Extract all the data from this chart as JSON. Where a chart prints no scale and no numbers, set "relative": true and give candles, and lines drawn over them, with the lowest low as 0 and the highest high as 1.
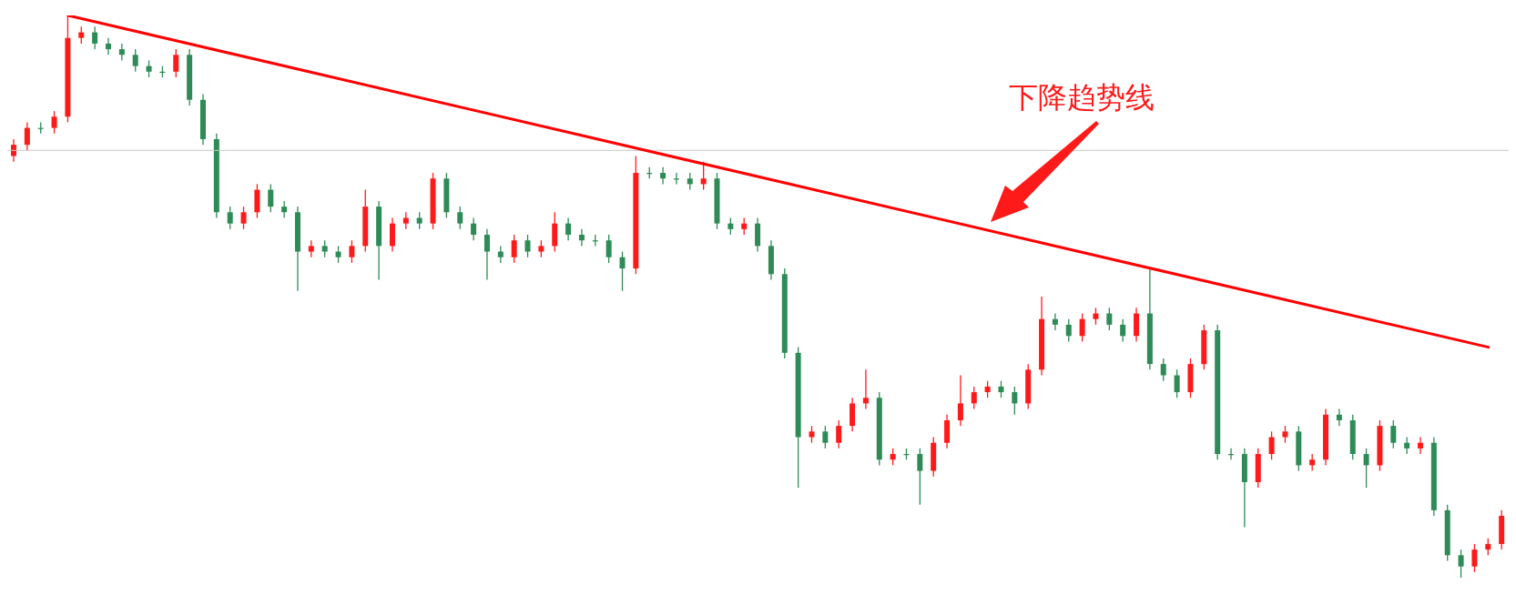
{
  "chart_data": {
    "type": "candlestick",
    "relative": true,
    "categories": [
      null,
      null,
      null,
      null,
      null,
      null,
      null,
      null,
      null,
      null,
      null,
      null,
      null,
      null,
      null,
      null,
      null,
      null,
      null,
      null,
      null,
      null,
      null,
      null,
      null,
      null,
      null,
      null,
      null,
      null,
      null,
      null,
      null,
      null,
      null,
      null,
      null,
      null,
      null,
      null,
      null,
      null,
      null,
      null,
      null,
      null,
      null,
      null,
      null,
      null,
      null,
      null,
      null,
      null,
      null,
      null,
      null,
      null,
      null,
      null,
      null,
      null,
      null,
      null,
      null,
      null,
      null,
      null,
      null,
      null,
      null,
      null,
      null,
      null,
      null,
      null,
      null,
      null,
      null,
      null,
      null,
      null,
      null,
      null,
      null,
      null,
      null,
      null,
      null,
      null,
      null,
      null,
      null,
      null,
      null,
      null,
      null,
      null,
      null,
      null,
      null,
      null,
      null,
      null,
      null,
      null,
      null,
      null,
      null,
      null,
      null
    ],
    "ohlc": [
      [
        0.75,
        0.78,
        0.74,
        0.77
      ],
      [
        0.77,
        0.81,
        0.76,
        0.8
      ],
      [
        0.8,
        0.81,
        0.79,
        0.8
      ],
      [
        0.8,
        0.83,
        0.79,
        0.82
      ],
      [
        0.82,
        1.0,
        0.81,
        0.96
      ],
      [
        0.96,
        0.98,
        0.95,
        0.97
      ],
      [
        0.97,
        0.98,
        0.94,
        0.95
      ],
      [
        0.95,
        0.96,
        0.93,
        0.94
      ],
      [
        0.94,
        0.95,
        0.92,
        0.93
      ],
      [
        0.93,
        0.94,
        0.9,
        0.91
      ],
      [
        0.91,
        0.92,
        0.89,
        0.9
      ],
      [
        0.9,
        0.91,
        0.89,
        0.9
      ],
      [
        0.9,
        0.94,
        0.89,
        0.93
      ],
      [
        0.93,
        0.94,
        0.84,
        0.85
      ],
      [
        0.85,
        0.86,
        0.77,
        0.78
      ],
      [
        0.78,
        0.79,
        0.64,
        0.65
      ],
      [
        0.65,
        0.66,
        0.62,
        0.63
      ],
      [
        0.63,
        0.66,
        0.62,
        0.65
      ],
      [
        0.65,
        0.7,
        0.64,
        0.69
      ],
      [
        0.69,
        0.7,
        0.65,
        0.66
      ],
      [
        0.66,
        0.67,
        0.64,
        0.65
      ],
      [
        0.65,
        0.66,
        0.51,
        0.58
      ],
      [
        0.58,
        0.6,
        0.57,
        0.59
      ],
      [
        0.59,
        0.6,
        0.57,
        0.58
      ],
      [
        0.58,
        0.59,
        0.56,
        0.57
      ],
      [
        0.57,
        0.6,
        0.56,
        0.59
      ],
      [
        0.59,
        0.69,
        0.58,
        0.66
      ],
      [
        0.66,
        0.67,
        0.53,
        0.59
      ],
      [
        0.59,
        0.64,
        0.58,
        0.63
      ],
      [
        0.63,
        0.65,
        0.62,
        0.64
      ],
      [
        0.64,
        0.65,
        0.62,
        0.63
      ],
      [
        0.63,
        0.72,
        0.62,
        0.71
      ],
      [
        0.71,
        0.72,
        0.64,
        0.65
      ],
      [
        0.65,
        0.66,
        0.62,
        0.63
      ],
      [
        0.63,
        0.64,
        0.6,
        0.61
      ],
      [
        0.61,
        0.62,
        0.53,
        0.58
      ],
      [
        0.58,
        0.59,
        0.56,
        0.57
      ],
      [
        0.57,
        0.61,
        0.56,
        0.6
      ],
      [
        0.6,
        0.61,
        0.57,
        0.58
      ],
      [
        0.58,
        0.6,
        0.57,
        0.59
      ],
      [
        0.59,
        0.65,
        0.58,
        0.63
      ],
      [
        0.63,
        0.64,
        0.6,
        0.61
      ],
      [
        0.61,
        0.62,
        0.59,
        0.6
      ],
      [
        0.6,
        0.61,
        0.59,
        0.6
      ],
      [
        0.6,
        0.61,
        0.56,
        0.57
      ],
      [
        0.57,
        0.58,
        0.51,
        0.55
      ],
      [
        0.55,
        0.75,
        0.54,
        0.72
      ],
      [
        0.72,
        0.73,
        0.71,
        0.72
      ],
      [
        0.72,
        0.73,
        0.7,
        0.71
      ],
      [
        0.71,
        0.72,
        0.7,
        0.71
      ],
      [
        0.71,
        0.72,
        0.69,
        0.7
      ],
      [
        0.7,
        0.74,
        0.69,
        0.71
      ],
      [
        0.71,
        0.72,
        0.62,
        0.63
      ],
      [
        0.63,
        0.64,
        0.61,
        0.62
      ],
      [
        0.62,
        0.64,
        0.61,
        0.63
      ],
      [
        0.63,
        0.64,
        0.58,
        0.59
      ],
      [
        0.59,
        0.6,
        0.53,
        0.54
      ],
      [
        0.54,
        0.55,
        0.39,
        0.4
      ],
      [
        0.4,
        0.41,
        0.16,
        0.25
      ],
      [
        0.25,
        0.27,
        0.24,
        0.26
      ],
      [
        0.26,
        0.27,
        0.23,
        0.24
      ],
      [
        0.24,
        0.28,
        0.23,
        0.27
      ],
      [
        0.27,
        0.32,
        0.26,
        0.31
      ],
      [
        0.31,
        0.37,
        0.3,
        0.32
      ],
      [
        0.32,
        0.33,
        0.2,
        0.21
      ],
      [
        0.21,
        0.23,
        0.2,
        0.22
      ],
      [
        0.22,
        0.23,
        0.21,
        0.22
      ],
      [
        0.22,
        0.23,
        0.13,
        0.19
      ],
      [
        0.19,
        0.25,
        0.18,
        0.24
      ],
      [
        0.24,
        0.29,
        0.23,
        0.28
      ],
      [
        0.28,
        0.36,
        0.27,
        0.31
      ],
      [
        0.31,
        0.34,
        0.3,
        0.33
      ],
      [
        0.33,
        0.35,
        0.32,
        0.34
      ],
      [
        0.34,
        0.35,
        0.32,
        0.33
      ],
      [
        0.33,
        0.34,
        0.29,
        0.31
      ],
      [
        0.31,
        0.38,
        0.3,
        0.37
      ],
      [
        0.37,
        0.5,
        0.36,
        0.46
      ],
      [
        0.46,
        0.47,
        0.44,
        0.45
      ],
      [
        0.45,
        0.46,
        0.42,
        0.43
      ],
      [
        0.43,
        0.47,
        0.42,
        0.46
      ],
      [
        0.46,
        0.48,
        0.45,
        0.47
      ],
      [
        0.47,
        0.48,
        0.44,
        0.45
      ],
      [
        0.45,
        0.46,
        0.42,
        0.43
      ],
      [
        0.43,
        0.48,
        0.42,
        0.47
      ],
      [
        0.47,
        0.55,
        0.37,
        0.38
      ],
      [
        0.38,
        0.39,
        0.35,
        0.36
      ],
      [
        0.36,
        0.37,
        0.32,
        0.33
      ],
      [
        0.33,
        0.39,
        0.32,
        0.38
      ],
      [
        0.38,
        0.45,
        0.37,
        0.44
      ],
      [
        0.44,
        0.45,
        0.21,
        0.22
      ],
      [
        0.22,
        0.23,
        0.21,
        0.22
      ],
      [
        0.22,
        0.23,
        0.09,
        0.17
      ],
      [
        0.17,
        0.23,
        0.16,
        0.22
      ],
      [
        0.22,
        0.26,
        0.21,
        0.25
      ],
      [
        0.25,
        0.27,
        0.24,
        0.26
      ],
      [
        0.26,
        0.27,
        0.19,
        0.2
      ],
      [
        0.2,
        0.22,
        0.19,
        0.21
      ],
      [
        0.21,
        0.3,
        0.2,
        0.29
      ],
      [
        0.29,
        0.3,
        0.27,
        0.28
      ],
      [
        0.28,
        0.29,
        0.21,
        0.22
      ],
      [
        0.22,
        0.23,
        0.16,
        0.2
      ],
      [
        0.2,
        0.28,
        0.19,
        0.27
      ],
      [
        0.27,
        0.28,
        0.23,
        0.24
      ],
      [
        0.24,
        0.25,
        0.22,
        0.23
      ],
      [
        0.23,
        0.25,
        0.22,
        0.24
      ],
      [
        0.24,
        0.25,
        0.11,
        0.12
      ],
      [
        0.12,
        0.13,
        0.03,
        0.04
      ],
      [
        0.04,
        0.05,
        0,
        0.02
      ],
      [
        0.02,
        0.06,
        0.01,
        0.05
      ],
      [
        0.05,
        0.07,
        0.04,
        0.06
      ],
      [
        0.06,
        0.12,
        0.05,
        0.11
      ]
    ],
    "colors": [
      "#ff1a1a",
      "#ff1a1a",
      "#2e8b57",
      "#ff1a1a",
      "#ff1a1a",
      "#ff1a1a",
      "#2e8b57",
      "#2e8b57",
      "#2e8b57",
      "#2e8b57",
      "#2e8b57",
      "#2e8b57",
      "#ff1a1a",
      "#2e8b57",
      "#2e8b57",
      "#2e8b57",
      "#2e8b57",
      "#ff1a1a",
      "#ff1a1a",
      "#2e8b57",
      "#2e8b57",
      "#2e8b57",
      "#ff1a1a",
      "#2e8b57",
      "#2e8b57",
      "#ff1a1a",
      "#ff1a1a",
      "#2e8b57",
      "#ff1a1a",
      "#ff1a1a",
      "#2e8b57",
      "#ff1a1a",
      "#2e8b57",
      "#2e8b57",
      "#2e8b57",
      "#2e8b57",
      "#2e8b57",
      "#ff1a1a",
      "#2e8b57",
      "#ff1a1a",
      "#ff1a1a",
      "#2e8b57",
      "#2e8b57",
      "#2e8b57",
      "#2e8b57",
      "#2e8b57",
      "#ff1a1a",
      "#2e8b57",
      "#2e8b57",
      "#2e8b57",
      "#2e8b57",
      "#ff1a1a",
      "#2e8b57",
      "#2e8b57",
      "#ff1a1a",
      "#2e8b57",
      "#2e8b57",
      "#2e8b57",
      "#2e8b57",
      "#ff1a1a",
      "#2e8b57",
      "#ff1a1a",
      "#ff1a1a",
      "#ff1a1a",
      "#2e8b57",
      "#ff1a1a",
      "#2e8b57",
      "#2e8b57",
      "#ff1a1a",
      "#ff1a1a",
      "#ff1a1a",
      "#ff1a1a",
      "#ff1a1a",
      "#2e8b57",
      "#2e8b57",
      "#ff1a1a",
      "#ff1a1a",
      "#2e8b57",
      "#2e8b57",
      "#ff1a1a",
      "#ff1a1a",
      "#2e8b57",
      "#2e8b57",
      "#ff1a1a",
      "#2e8b57",
      "#2e8b57",
      "#2e8b57",
      "#ff1a1a",
      "#ff1a1a",
      "#2e8b57",
      "#2e8b57",
      "#2e8b57",
      "#ff1a1a",
      "#ff1a1a",
      "#ff1a1a",
      "#2e8b57",
      "#ff1a1a",
      "#ff1a1a",
      "#2e8b57",
      "#2e8b57",
      "#2e8b57",
      "#ff1a1a",
      "#2e8b57",
      "#2e8b57",
      "#ff1a1a",
      "#2e8b57",
      "#2e8b57",
      "#2e8b57",
      "#ff1a1a",
      "#ff1a1a",
      "#ff1a1a"
    ],
    "series": [
      {
        "type": "line",
        "color": "#ff0000",
        "values": [
          null,
          null,
          null,
          null,
          1,
          null,
          null,
          null,
          null,
          null,
          null,
          null,
          null,
          null,
          null,
          null,
          null,
          null,
          null,
          null,
          null,
          null,
          null,
          null,
          null,
          null,
          null,
          null,
          null,
          null,
          null,
          null,
          null,
          null,
          null,
          null,
          null,
          null,
          null,
          null,
          null,
          null,
          null,
          null,
          null,
          null,
          null,
          null,
          null,
          null,
          null,
          null,
          null,
          null,
          null,
          null,
          null,
          null,
          null,
          null,
          null,
          null,
          null,
          null,
          null,
          null,
          null,
          null,
          null,
          null,
          null,
          null,
          null,
          null,
          null,
          null,
          null,
          null,
          null,
          null,
          null,
          null,
          null,
          null,
          null,
          null,
          null,
          null,
          null,
          null,
          null,
          null,
          null,
          null,
          null,
          null,
          null,
          null,
          null,
          null,
          null,
          null,
          null,
          null,
          null,
          null,
          null,
          null,
          null,
          0.41,
          null
        ]
      }
    ],
    "ref_lines": [
      {
        "axis": "y",
        "value": 0.76,
        "color": "#c8c8c8"
      }
    ],
    "annotations": [
      "下降趋势线"
    ]
  }
}
